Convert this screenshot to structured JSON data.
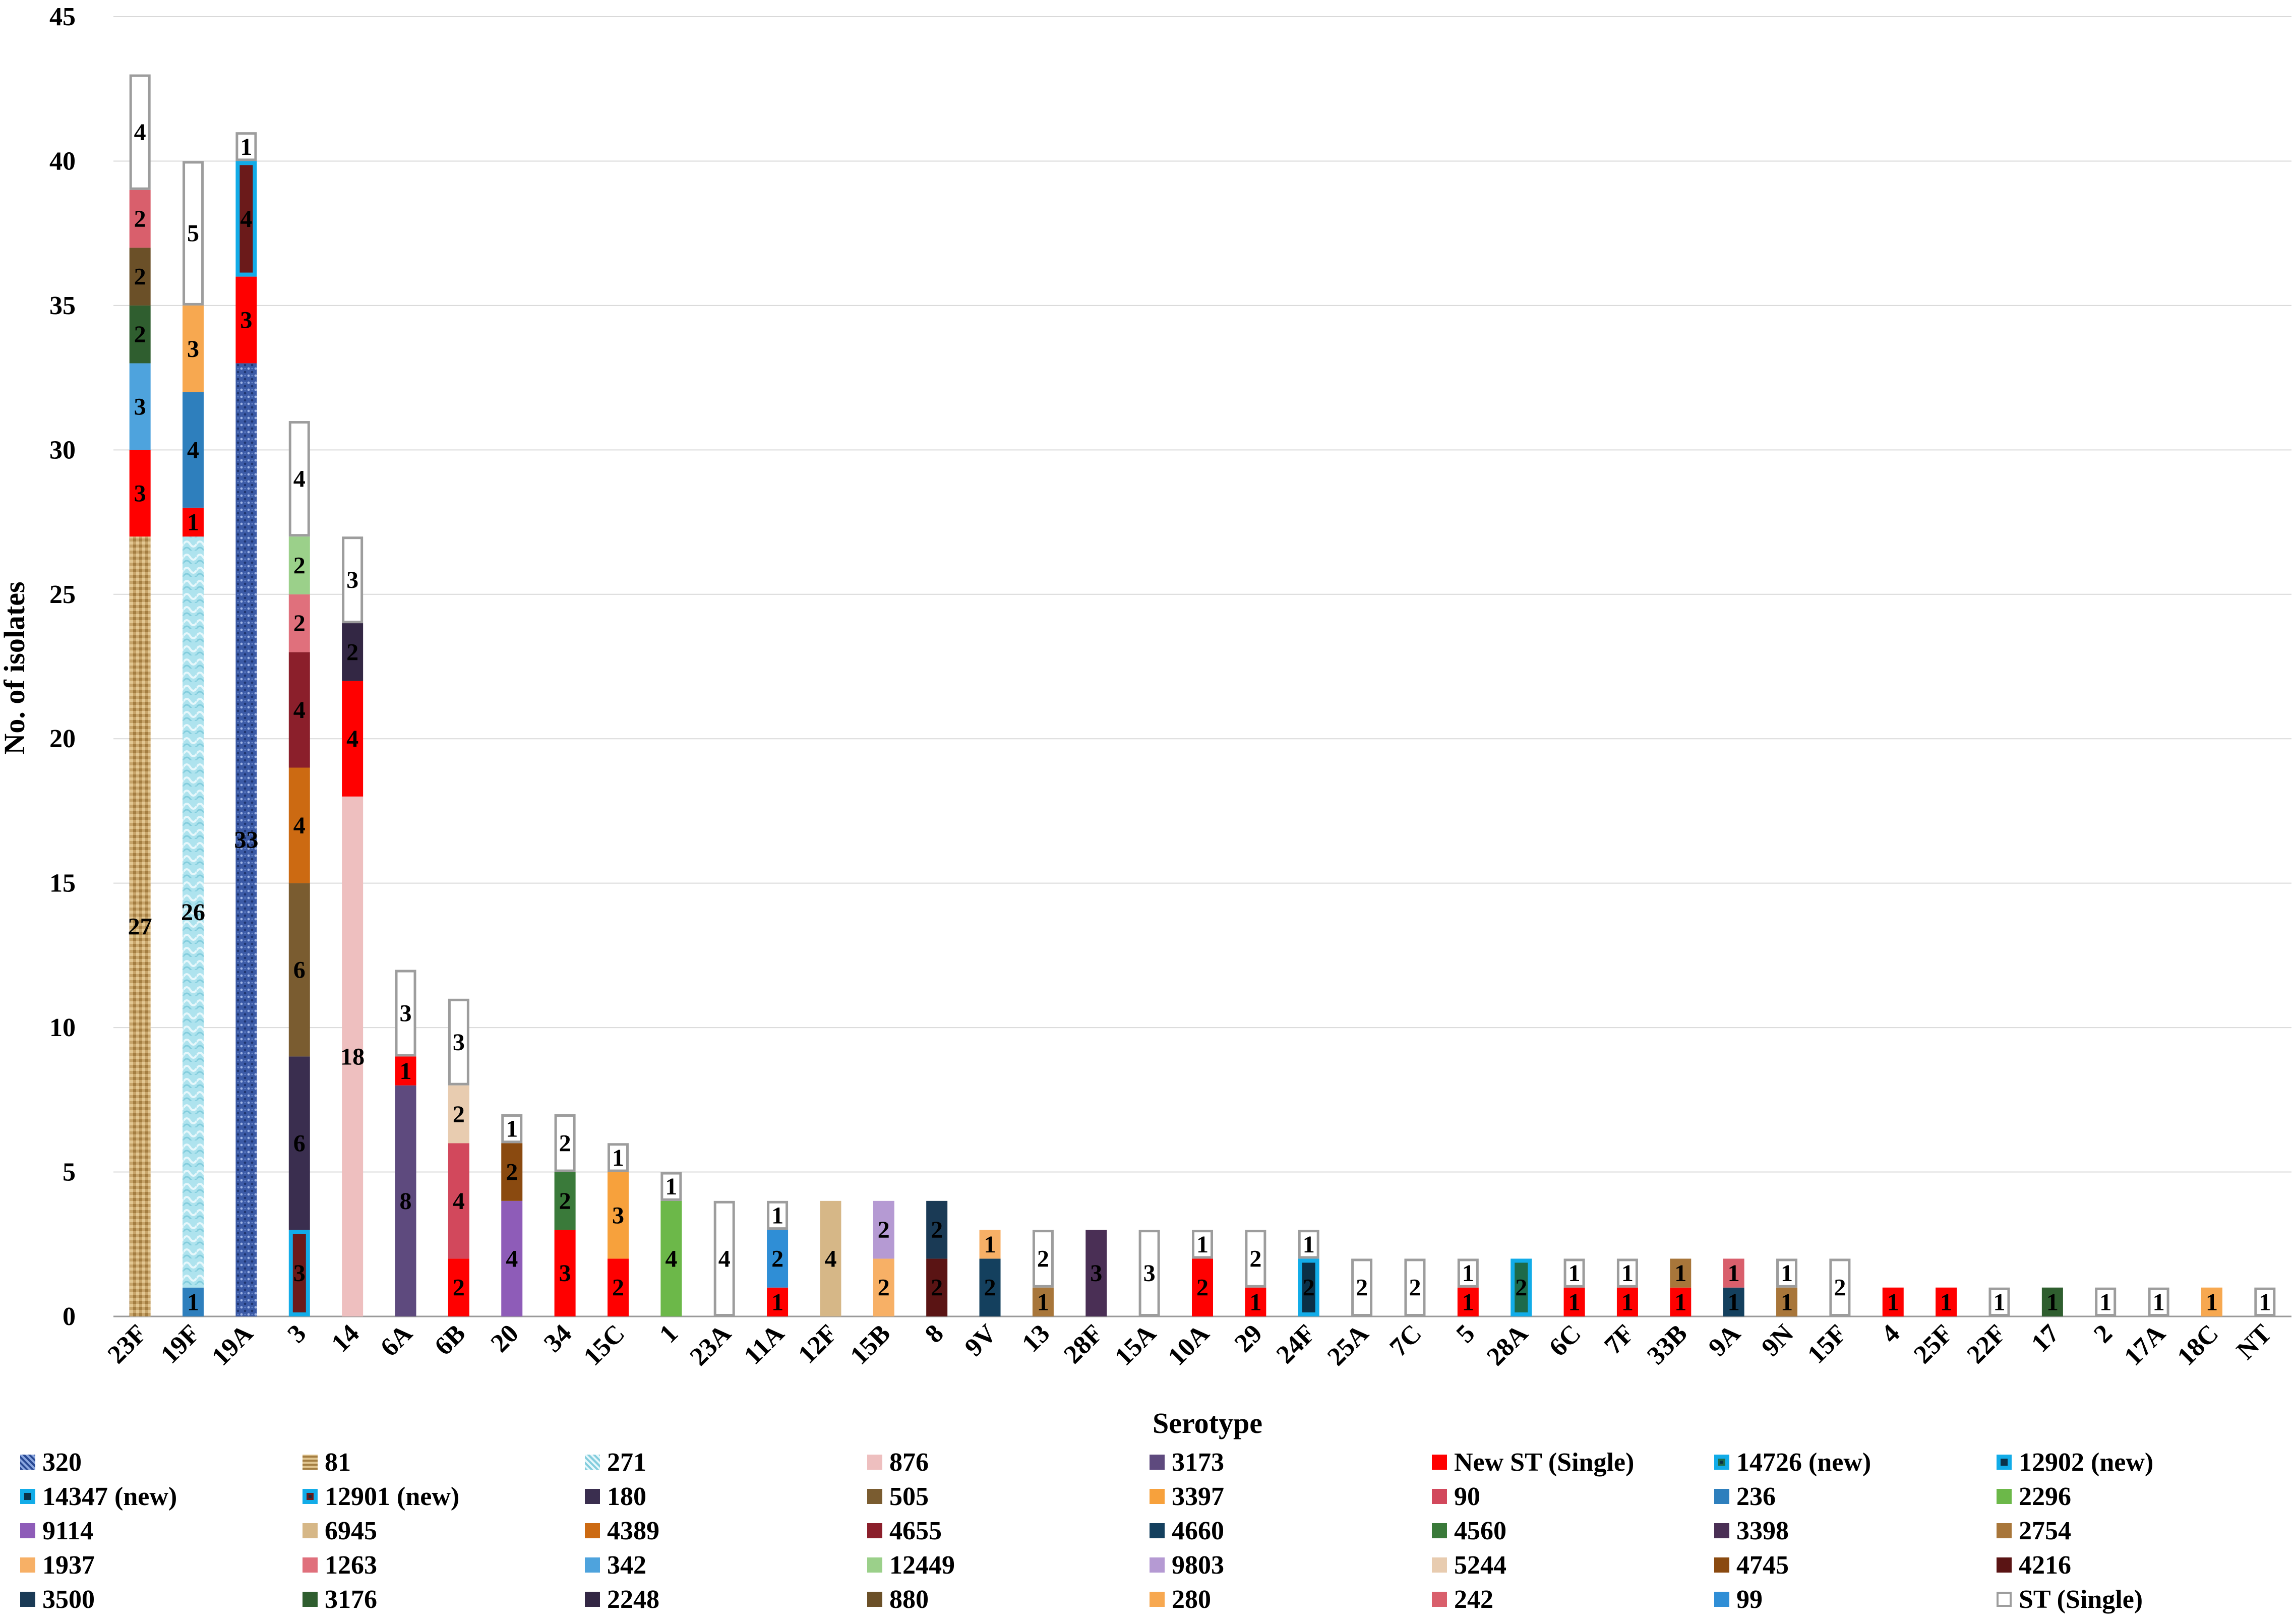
{
  "chart_data": {
    "type": "stacked_bar",
    "xlabel": "Serotype",
    "ylabel": "No. of isolates",
    "ylim": [
      0,
      45
    ],
    "yticks": [
      0,
      5,
      10,
      15,
      20,
      25,
      30,
      35,
      40,
      45
    ],
    "grid": true,
    "legend_position": "bottom",
    "categories": [
      "23F",
      "19F",
      "19A",
      "3",
      "14",
      "6A",
      "6B",
      "20",
      "34",
      "15C",
      "1",
      "23A",
      "11A",
      "12F",
      "15B",
      "8",
      "9V",
      "13",
      "28F",
      "15A",
      "10A",
      "29",
      "24F",
      "25A",
      "7C",
      "5",
      "28A",
      "6C",
      "7F",
      "33B",
      "9A",
      "9N",
      "15F",
      "4",
      "25F",
      "22F",
      "17",
      "2",
      "17A",
      "18C",
      "NT"
    ],
    "legend": [
      {
        "name": "320",
        "color": "#3b5aa6",
        "style": "pattern-blue"
      },
      {
        "name": "81",
        "color": "#c7a46a",
        "style": "pattern-tan"
      },
      {
        "name": "271",
        "color": "#a8e0ec",
        "style": "pattern-cyan"
      },
      {
        "name": "876",
        "color": "#eebfbf",
        "style": "solid"
      },
      {
        "name": "3173",
        "color": "#5e4a7e",
        "style": "solid"
      },
      {
        "name": "New ST (Single)",
        "color": "#ff0000",
        "style": "solid"
      },
      {
        "name": "14726 (new)",
        "color": "#1d6a4a",
        "style": "new"
      },
      {
        "name": "12902 (new)",
        "color": "#0b3047",
        "style": "new"
      },
      {
        "name": "14347 (new)",
        "color": "#0b3047",
        "style": "new"
      },
      {
        "name": "12901 (new)",
        "color": "#6b1a1a",
        "style": "new"
      },
      {
        "name": "180",
        "color": "#3a2e4f",
        "style": "solid"
      },
      {
        "name": "505",
        "color": "#7a5c30",
        "style": "solid"
      },
      {
        "name": "3397",
        "color": "#f7a13c",
        "style": "solid"
      },
      {
        "name": "90",
        "color": "#d2485c",
        "style": "solid"
      },
      {
        "name": "236",
        "color": "#2e7fbd",
        "style": "solid"
      },
      {
        "name": "2296",
        "color": "#6cb849",
        "style": "solid"
      },
      {
        "name": "9114",
        "color": "#8e5cb8",
        "style": "solid"
      },
      {
        "name": "6945",
        "color": "#d6b787",
        "style": "solid"
      },
      {
        "name": "4389",
        "color": "#cc6a12",
        "style": "solid"
      },
      {
        "name": "4655",
        "color": "#8b1f2b",
        "style": "solid"
      },
      {
        "name": "4660",
        "color": "#14405e",
        "style": "solid"
      },
      {
        "name": "4560",
        "color": "#3a7a3a",
        "style": "solid"
      },
      {
        "name": "3398",
        "color": "#4a2f55",
        "style": "solid"
      },
      {
        "name": "2754",
        "color": "#a8763a",
        "style": "solid"
      },
      {
        "name": "1937",
        "color": "#f7b066",
        "style": "solid"
      },
      {
        "name": "1263",
        "color": "#e0707c",
        "style": "solid"
      },
      {
        "name": "342",
        "color": "#4ea3dd",
        "style": "solid"
      },
      {
        "name": "12449",
        "color": "#9bd08a",
        "style": "solid"
      },
      {
        "name": "9803",
        "color": "#b59ad3",
        "style": "solid"
      },
      {
        "name": "5244",
        "color": "#e8ccb0",
        "style": "solid"
      },
      {
        "name": "4745",
        "color": "#8a4a10",
        "style": "solid"
      },
      {
        "name": "4216",
        "color": "#5a1414",
        "style": "solid"
      },
      {
        "name": "3500",
        "color": "#1a3a55",
        "style": "solid"
      },
      {
        "name": "3176",
        "color": "#2f5e2f",
        "style": "solid"
      },
      {
        "name": "2248",
        "color": "#332744",
        "style": "solid"
      },
      {
        "name": "880",
        "color": "#6b5028",
        "style": "solid"
      },
      {
        "name": "280",
        "color": "#f7a850",
        "style": "solid"
      },
      {
        "name": "242",
        "color": "#d95f6c",
        "style": "solid"
      },
      {
        "name": "99",
        "color": "#2f8ed6",
        "style": "solid"
      },
      {
        "name": "ST (Single)",
        "color": "#ffffff",
        "style": "single"
      }
    ],
    "bars": [
      {
        "category": "23F",
        "segments": [
          {
            "st": "81",
            "value": 27
          },
          {
            "st": "New ST (Single)",
            "value": 3
          },
          {
            "st": "342",
            "value": 3
          },
          {
            "st": "3176",
            "value": 2
          },
          {
            "st": "880",
            "value": 2
          },
          {
            "st": "242",
            "value": 2
          },
          {
            "st": "ST (Single)",
            "value": 4
          }
        ]
      },
      {
        "category": "19F",
        "segments": [
          {
            "st": "236",
            "value": 1
          },
          {
            "st": "271",
            "value": 26
          },
          {
            "st": "New ST (Single)",
            "value": 1
          },
          {
            "st": "236",
            "value": 4
          },
          {
            "st": "280",
            "value": 3
          },
          {
            "st": "ST (Single)",
            "value": 5
          }
        ]
      },
      {
        "category": "19A",
        "segments": [
          {
            "st": "320",
            "value": 33
          },
          {
            "st": "New ST (Single)",
            "value": 3
          },
          {
            "st": "12901 (new)",
            "value": 4
          },
          {
            "st": "ST (Single)",
            "value": 1
          }
        ]
      },
      {
        "category": "3",
        "segments": [
          {
            "st": "12901 (new)",
            "value": 3
          },
          {
            "st": "180",
            "value": 6
          },
          {
            "st": "505",
            "value": 6
          },
          {
            "st": "4389",
            "value": 4
          },
          {
            "st": "4655",
            "value": 4
          },
          {
            "st": "1263",
            "value": 2
          },
          {
            "st": "12449",
            "value": 2
          },
          {
            "st": "ST (Single)",
            "value": 4
          }
        ]
      },
      {
        "category": "14",
        "segments": [
          {
            "st": "876",
            "value": 18
          },
          {
            "st": "New ST (Single)",
            "value": 4
          },
          {
            "st": "2248",
            "value": 2
          },
          {
            "st": "ST (Single)",
            "value": 3
          }
        ]
      },
      {
        "category": "6A",
        "segments": [
          {
            "st": "3173",
            "value": 8
          },
          {
            "st": "New ST (Single)",
            "value": 1
          },
          {
            "st": "ST (Single)",
            "value": 3
          }
        ]
      },
      {
        "category": "6B",
        "segments": [
          {
            "st": "New ST (Single)",
            "value": 2
          },
          {
            "st": "90",
            "value": 4
          },
          {
            "st": "5244",
            "value": 2
          },
          {
            "st": "ST (Single)",
            "value": 3
          }
        ]
      },
      {
        "category": "20",
        "segments": [
          {
            "st": "9114",
            "value": 4
          },
          {
            "st": "4745",
            "value": 2
          },
          {
            "st": "ST (Single)",
            "value": 1
          }
        ]
      },
      {
        "category": "34",
        "segments": [
          {
            "st": "New ST (Single)",
            "value": 3
          },
          {
            "st": "4560",
            "value": 2
          },
          {
            "st": "ST (Single)",
            "value": 2
          }
        ]
      },
      {
        "category": "15C",
        "segments": [
          {
            "st": "New ST (Single)",
            "value": 2
          },
          {
            "st": "3397",
            "value": 3
          },
          {
            "st": "ST (Single)",
            "value": 1
          }
        ]
      },
      {
        "category": "1",
        "segments": [
          {
            "st": "2296",
            "value": 4
          },
          {
            "st": "ST (Single)",
            "value": 1
          }
        ]
      },
      {
        "category": "23A",
        "segments": [
          {
            "st": "ST (Single)",
            "value": 4
          }
        ]
      },
      {
        "category": "11A",
        "segments": [
          {
            "st": "New ST (Single)",
            "value": 1
          },
          {
            "st": "99",
            "value": 2
          },
          {
            "st": "ST (Single)",
            "value": 1
          }
        ]
      },
      {
        "category": "12F",
        "segments": [
          {
            "st": "6945",
            "value": 4
          }
        ]
      },
      {
        "category": "15B",
        "segments": [
          {
            "st": "1937",
            "value": 2
          },
          {
            "st": "9803",
            "value": 2
          }
        ]
      },
      {
        "category": "8",
        "segments": [
          {
            "st": "4216",
            "value": 2
          },
          {
            "st": "3500",
            "value": 2
          }
        ]
      },
      {
        "category": "9V",
        "segments": [
          {
            "st": "4660",
            "value": 2
          },
          {
            "st": "1937",
            "value": 1
          }
        ]
      },
      {
        "category": "13",
        "segments": [
          {
            "st": "2754",
            "value": 1
          },
          {
            "st": "ST (Single)",
            "value": 2
          }
        ]
      },
      {
        "category": "28F",
        "segments": [
          {
            "st": "3398",
            "value": 3
          }
        ]
      },
      {
        "category": "15A",
        "segments": [
          {
            "st": "ST (Single)",
            "value": 3
          }
        ]
      },
      {
        "category": "10A",
        "segments": [
          {
            "st": "New ST (Single)",
            "value": 2
          },
          {
            "st": "ST (Single)",
            "value": 1
          }
        ]
      },
      {
        "category": "29",
        "segments": [
          {
            "st": "New ST (Single)",
            "value": 1
          },
          {
            "st": "ST (Single)",
            "value": 2
          }
        ]
      },
      {
        "category": "24F",
        "segments": [
          {
            "st": "14347 (new)",
            "value": 2
          },
          {
            "st": "ST (Single)",
            "value": 1
          }
        ]
      },
      {
        "category": "25A",
        "segments": [
          {
            "st": "ST (Single)",
            "value": 2
          }
        ]
      },
      {
        "category": "7C",
        "segments": [
          {
            "st": "ST (Single)",
            "value": 2
          }
        ]
      },
      {
        "category": "5",
        "segments": [
          {
            "st": "New ST (Single)",
            "value": 1
          },
          {
            "st": "ST (Single)",
            "value": 1
          }
        ]
      },
      {
        "category": "28A",
        "segments": [
          {
            "st": "14726 (new)",
            "value": 2
          }
        ]
      },
      {
        "category": "6C",
        "segments": [
          {
            "st": "New ST (Single)",
            "value": 1
          },
          {
            "st": "ST (Single)",
            "value": 1
          }
        ]
      },
      {
        "category": "7F",
        "segments": [
          {
            "st": "New ST (Single)",
            "value": 1
          },
          {
            "st": "ST (Single)",
            "value": 1
          }
        ]
      },
      {
        "category": "33B",
        "segments": [
          {
            "st": "New ST (Single)",
            "value": 1
          },
          {
            "st": "2754",
            "value": 1
          }
        ]
      },
      {
        "category": "9A",
        "segments": [
          {
            "st": "4660",
            "value": 1
          },
          {
            "st": "242",
            "value": 1
          }
        ]
      },
      {
        "category": "9N",
        "segments": [
          {
            "st": "2754",
            "value": 1
          },
          {
            "st": "ST (Single)",
            "value": 1
          }
        ]
      },
      {
        "category": "15F",
        "segments": [
          {
            "st": "ST (Single)",
            "value": 2
          }
        ]
      },
      {
        "category": "4",
        "segments": [
          {
            "st": "New ST (Single)",
            "value": 1
          }
        ]
      },
      {
        "category": "25F",
        "segments": [
          {
            "st": "New ST (Single)",
            "value": 1
          }
        ]
      },
      {
        "category": "22F",
        "segments": [
          {
            "st": "ST (Single)",
            "value": 1
          }
        ]
      },
      {
        "category": "17",
        "segments": [
          {
            "st": "3176",
            "value": 1
          }
        ]
      },
      {
        "category": "2",
        "segments": [
          {
            "st": "ST (Single)",
            "value": 1
          }
        ]
      },
      {
        "category": "17A",
        "segments": [
          {
            "st": "ST (Single)",
            "value": 1
          }
        ]
      },
      {
        "category": "18C",
        "segments": [
          {
            "st": "280",
            "value": 1
          }
        ]
      },
      {
        "category": "NT",
        "segments": [
          {
            "st": "ST (Single)",
            "value": 1
          }
        ]
      }
    ]
  }
}
